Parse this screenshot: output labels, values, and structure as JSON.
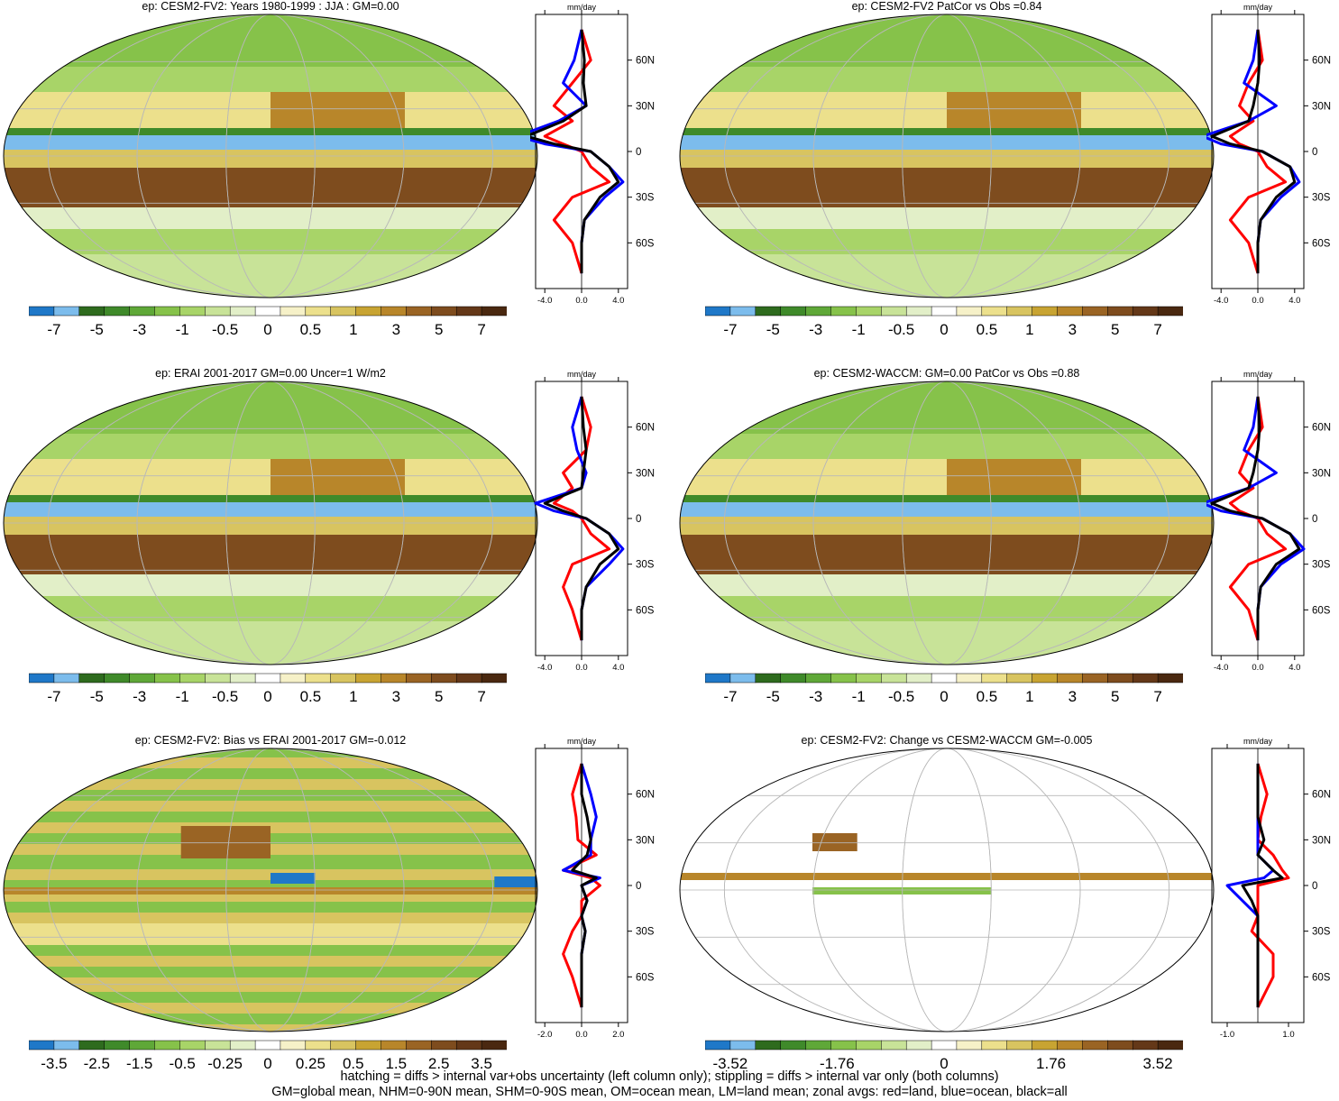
{
  "colors": {
    "scale": [
      "#1f78c8",
      "#7cbcec",
      "#2e6b1e",
      "#3f8a2a",
      "#5fa838",
      "#86c24a",
      "#a8d468",
      "#c8e398",
      "#e2efc8",
      "#ffffff",
      "#f6f1c8",
      "#ece08c",
      "#d8c460",
      "#c8a432",
      "#b8862a",
      "#9a6424",
      "#7e4c1e",
      "#643818",
      "#4a2810"
    ],
    "land_line": "#ff0000",
    "ocean_line": "#0000ff",
    "all_line": "#000000"
  },
  "panels": [
    {
      "title": "ep: CESM2-FV2: Years 1980-1999 : JJA : GM=0.00",
      "mode": "full",
      "cbar_labels": [
        "-7",
        "-5",
        "-3",
        "-1",
        "-0.5",
        "0",
        "0.5",
        "1",
        "3",
        "5",
        "7"
      ],
      "units": "mm/day",
      "zonal_ticks": [
        "-4.0",
        "0.0",
        "4.0"
      ],
      "lat_labels": [
        "60N",
        "30N",
        "0",
        "30S",
        "60S"
      ]
    },
    {
      "title": "ep: CESM2-FV2 PatCor vs Obs =0.84",
      "mode": "full",
      "cbar_labels": [
        "-7",
        "-5",
        "-3",
        "-1",
        "-0.5",
        "0",
        "0.5",
        "1",
        "3",
        "5",
        "7"
      ],
      "units": "mm/day",
      "zonal_ticks": [
        "-4.0",
        "0.0",
        "4.0"
      ],
      "lat_labels": [
        "60N",
        "30N",
        "0",
        "30S",
        "60S"
      ]
    },
    {
      "title": "ep: ERAI 2001-2017 GM=0.00 Uncer=1 W/m2",
      "mode": "full",
      "cbar_labels": [
        "-7",
        "-5",
        "-3",
        "-1",
        "-0.5",
        "0",
        "0.5",
        "1",
        "3",
        "5",
        "7"
      ],
      "units": "mm/day",
      "zonal_ticks": [
        "-4.0",
        "0.0",
        "4.0"
      ],
      "lat_labels": [
        "60N",
        "30N",
        "0",
        "30S",
        "60S"
      ]
    },
    {
      "title": "ep: CESM2-WACCM: GM=0.00 PatCor vs Obs =0.88",
      "mode": "full",
      "cbar_labels": [
        "-7",
        "-5",
        "-3",
        "-1",
        "-0.5",
        "0",
        "0.5",
        "1",
        "3",
        "5",
        "7"
      ],
      "units": "mm/day",
      "zonal_ticks": [
        "-4.0",
        "0.0",
        "4.0"
      ],
      "lat_labels": [
        "60N",
        "30N",
        "0",
        "30S",
        "60S"
      ]
    },
    {
      "title": "ep: CESM2-FV2: Bias vs ERAI 2001-2017 GM=-0.012",
      "mode": "bias",
      "cbar_labels": [
        "-3.5",
        "-2.5",
        "-1.5",
        "-0.5",
        "-0.25",
        "0",
        "0.25",
        "0.5",
        "1.5",
        "2.5",
        "3.5"
      ],
      "units": "mm/day",
      "zonal_ticks": [
        "-2.0",
        "0.0",
        "2.0"
      ],
      "lat_labels": [
        "60N",
        "30N",
        "0",
        "30S",
        "60S"
      ]
    },
    {
      "title": "ep: CESM2-FV2: Change vs CESM2-WACCM GM=-0.005",
      "mode": "change",
      "cbar_labels": [
        "-3.52",
        "-1.76",
        "0",
        "1.76",
        "3.52"
      ],
      "units": "mm/day",
      "zonal_ticks": [
        "-1.0",
        "1.0"
      ],
      "lat_labels": [
        "60N",
        "30N",
        "0",
        "30S",
        "60S"
      ]
    }
  ],
  "footer": {
    "line1": "hatching = diffs > internal var+obs uncertainty (left column only); stippling = diffs > internal var only (both columns)",
    "line2": "GM=global mean, NHM=0-90N mean, SHM=0-90S mean, OM=ocean mean, LM=land mean; zonal avgs: red=land, blue=ocean, black=all"
  },
  "chart_data": [
    {
      "type": "heatmap",
      "title": "ep: CESM2-FV2: Years 1980-1999 : JJA : GM=0.00",
      "colorbar_levels": [
        "-7",
        "-5",
        "-3",
        "-1",
        "-0.5",
        "0",
        "0.5",
        "1",
        "3",
        "5",
        "7"
      ],
      "zonal_mean": {
        "units": "mm/day",
        "xlim": [
          -5,
          5
        ],
        "lat": [
          80,
          60,
          45,
          30,
          20,
          10,
          5,
          0,
          -10,
          -20,
          -30,
          -45,
          -60,
          -80
        ],
        "all": [
          0,
          0.3,
          0.2,
          0.5,
          -2,
          -6,
          -3,
          1,
          3,
          4,
          2,
          0.3,
          0,
          0
        ],
        "land": [
          0,
          1,
          -1,
          -3,
          -1,
          -4,
          -2,
          0,
          1,
          3,
          -1,
          -3,
          -1,
          0
        ],
        "ocean": [
          0,
          -0.8,
          -2,
          0.5,
          -2.5,
          -7,
          -4,
          1,
          3,
          4.5,
          2.5,
          0.3,
          0,
          0
        ]
      }
    },
    {
      "type": "heatmap",
      "title": "ep: CESM2-FV2 PatCor vs Obs =0.84",
      "colorbar_levels": [
        "-7",
        "-5",
        "-3",
        "-1",
        "-0.5",
        "0",
        "0.5",
        "1",
        "3",
        "5",
        "7"
      ],
      "zonal_mean": {
        "units": "mm/day",
        "xlim": [
          -5,
          5
        ],
        "lat": [
          80,
          60,
          45,
          30,
          20,
          10,
          5,
          0,
          -10,
          -20,
          -30,
          -45,
          -60,
          -80
        ],
        "all": [
          0,
          0.2,
          0,
          -0.5,
          -1,
          -5,
          -3,
          0.5,
          3.5,
          4,
          2,
          0.3,
          0,
          0
        ],
        "land": [
          0,
          0.5,
          -1,
          -2,
          -0.5,
          -3,
          -2,
          0,
          1,
          3,
          -1,
          -3,
          -1,
          0
        ],
        "ocean": [
          0,
          -0.5,
          -1.5,
          2,
          -1,
          -6,
          -4,
          0.5,
          3.5,
          4.5,
          2.5,
          0.3,
          0,
          0
        ]
      }
    },
    {
      "type": "heatmap",
      "title": "ep: ERAI 2001-2017 GM=0.00 Uncer=1 W/m2",
      "colorbar_levels": [
        "-7",
        "-5",
        "-3",
        "-1",
        "-0.5",
        "0",
        "0.5",
        "1",
        "3",
        "5",
        "7"
      ],
      "zonal_mean": {
        "units": "mm/day",
        "xlim": [
          -5,
          5
        ],
        "lat": [
          80,
          60,
          45,
          30,
          20,
          10,
          5,
          0,
          -10,
          -20,
          -30,
          -45,
          -60,
          -80
        ],
        "all": [
          0,
          0.2,
          0.5,
          0.2,
          0,
          -4,
          -2,
          0.5,
          3,
          4,
          2,
          0.5,
          0,
          0
        ],
        "land": [
          0,
          1,
          0.5,
          -2,
          -1,
          -3,
          -1,
          0,
          1,
          3,
          -1,
          -2,
          -1,
          0
        ],
        "ocean": [
          0,
          -1,
          -0.5,
          0.5,
          0,
          -5,
          -3,
          0.5,
          3,
          4.5,
          3,
          0.5,
          0,
          0
        ]
      }
    },
    {
      "type": "heatmap",
      "title": "ep: CESM2-WACCM: GM=0.00 PatCor vs Obs =0.88",
      "colorbar_levels": [
        "-7",
        "-5",
        "-3",
        "-1",
        "-0.5",
        "0",
        "0.5",
        "1",
        "3",
        "5",
        "7"
      ],
      "zonal_mean": {
        "units": "mm/day",
        "xlim": [
          -5,
          5
        ],
        "lat": [
          80,
          60,
          45,
          30,
          20,
          10,
          5,
          0,
          -10,
          -20,
          -30,
          -45,
          -60,
          -80
        ],
        "all": [
          0,
          0.2,
          0,
          -0.5,
          -1,
          -5,
          -3,
          0.5,
          3.5,
          4.5,
          2,
          0.3,
          0,
          0
        ],
        "land": [
          0,
          0.5,
          -1,
          -2,
          -0.5,
          -3,
          -2,
          0,
          1,
          3,
          -1,
          -3,
          -1,
          0
        ],
        "ocean": [
          0,
          -0.5,
          -1.5,
          2,
          -1,
          -6,
          -4,
          0.5,
          3.5,
          5,
          2.5,
          0.3,
          0,
          0
        ]
      }
    },
    {
      "type": "heatmap",
      "title": "ep: CESM2-FV2: Bias vs ERAI 2001-2017 GM=-0.012",
      "colorbar_levels": [
        "-3.5",
        "-2.5",
        "-1.5",
        "-0.5",
        "-0.25",
        "0",
        "0.25",
        "0.5",
        "1.5",
        "2.5",
        "3.5"
      ],
      "zonal_mean": {
        "units": "mm/day",
        "xlim": [
          -2.5,
          2.5
        ],
        "lat": [
          80,
          60,
          45,
          30,
          20,
          10,
          5,
          0,
          -10,
          -20,
          -30,
          -45,
          -60,
          -80
        ],
        "all": [
          0,
          0,
          0.3,
          0.5,
          0.3,
          -0.5,
          0.8,
          0,
          0.3,
          0,
          0.2,
          0,
          0,
          0
        ],
        "land": [
          0,
          -0.5,
          -0.3,
          -0.2,
          0.8,
          -1,
          0.5,
          1,
          0,
          0,
          -0.5,
          -1,
          -0.5,
          0
        ],
        "ocean": [
          0,
          0.5,
          0.8,
          0.5,
          0.5,
          -1,
          1,
          0,
          0.3,
          0,
          0.2,
          0,
          0,
          0
        ]
      }
    },
    {
      "type": "heatmap",
      "title": "ep: CESM2-FV2: Change vs CESM2-WACCM GM=-0.005",
      "colorbar_levels": [
        "-3.52",
        "-1.76",
        "0",
        "1.76",
        "3.52"
      ],
      "zonal_mean": {
        "units": "mm/day",
        "xlim": [
          -1.5,
          1.5
        ],
        "lat": [
          80,
          60,
          45,
          30,
          20,
          10,
          5,
          0,
          -10,
          -20,
          -30,
          -45,
          -60,
          -80
        ],
        "all": [
          0,
          0,
          0,
          0.2,
          0,
          0.5,
          0.8,
          -0.5,
          -0.2,
          0,
          0,
          0,
          0,
          0
        ],
        "land": [
          0,
          0.3,
          0.1,
          0,
          0.5,
          0.8,
          1,
          0,
          0,
          0,
          -0.2,
          0.5,
          0.5,
          0
        ],
        "ocean": [
          0,
          0,
          0,
          0,
          0,
          0.5,
          0.2,
          -1,
          -0.5,
          0,
          0,
          0,
          0,
          0
        ]
      }
    }
  ]
}
